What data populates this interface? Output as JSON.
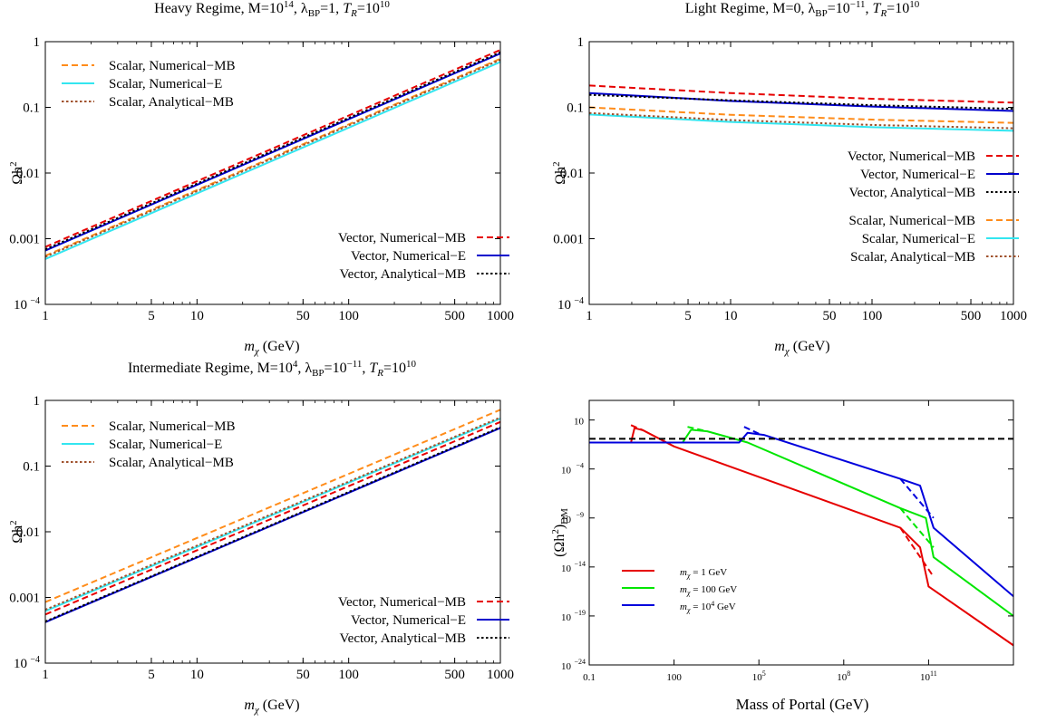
{
  "chart_data": [
    {
      "type": "line",
      "title": "Heavy Regime, M=10^14, λ_BP=1, T_R=10^10",
      "title_parts": {
        "lead": "Heavy Regime, M=10",
        "m_exp": "14",
        "mid": ", λ",
        "lam_sub": "BP",
        "lam_val": "=1, ",
        "t": "T",
        "t_sub": "R",
        "t_val": "=10",
        "t_exp": "10"
      },
      "xlabel": "m_χ (GeV)",
      "ylabel": "Ωh²",
      "xscale": "log",
      "yscale": "log",
      "xlim": [
        1,
        1000
      ],
      "ylim": [
        0.0001,
        1
      ],
      "xticks": [
        {
          "v": 1,
          "label": "1"
        },
        {
          "v": 5,
          "label": "5"
        },
        {
          "v": 10,
          "label": "10"
        },
        {
          "v": 50,
          "label": "50"
        },
        {
          "v": 100,
          "label": "100"
        },
        {
          "v": 500,
          "label": "500"
        },
        {
          "v": 1000,
          "label": "1000"
        }
      ],
      "yticks": [
        {
          "v": 0.0001,
          "label": "10",
          "exp": "−4"
        },
        {
          "v": 0.001,
          "label": "0.001"
        },
        {
          "v": 0.01,
          "label": "0.01"
        },
        {
          "v": 0.1,
          "label": "0.1"
        },
        {
          "v": 1,
          "label": "1"
        }
      ],
      "series": [
        {
          "name": "Scalar, Numerical−MB",
          "color": "#ff8c1a",
          "dash": "dashed",
          "x": [
            1,
            1000
          ],
          "y": [
            0.00055,
            0.55
          ]
        },
        {
          "name": "Scalar, Numerical−E",
          "color": "#33e6f0",
          "dash": "solid",
          "x": [
            1,
            1000
          ],
          "y": [
            0.00049,
            0.49
          ]
        },
        {
          "name": "Scalar, Analytical−MB",
          "color": "#a0522d",
          "dash": "dotted",
          "x": [
            1,
            1000
          ],
          "y": [
            0.00053,
            0.53
          ]
        },
        {
          "name": "Vector, Numerical−MB",
          "color": "#e60000",
          "dash": "dashed",
          "x": [
            1,
            1000
          ],
          "y": [
            0.00075,
            0.75
          ]
        },
        {
          "name": "Vector, Numerical−E",
          "color": "#0000cc",
          "dash": "solid",
          "x": [
            1,
            1000
          ],
          "y": [
            0.00066,
            0.66
          ]
        },
        {
          "name": "Vector, Analytical−MB",
          "color": "#000000",
          "dash": "dotted",
          "x": [
            1,
            1000
          ],
          "y": [
            0.00069,
            0.69
          ]
        }
      ],
      "legends": [
        {
          "placement": "top-left",
          "series": [
            0,
            1,
            2
          ]
        },
        {
          "placement": "bottom-right",
          "series": [
            3,
            4,
            5
          ]
        }
      ]
    },
    {
      "type": "line",
      "title": "Light Regime, M=0, λ_BP=10^−11, T_R=10^10",
      "title_parts": {
        "lead": "Light Regime, M=0",
        "m_exp": "",
        "mid": ", λ",
        "lam_sub": "BP",
        "lam_val": "=10",
        "lam_exp": "−11",
        "lam_sep": ", ",
        "t": "T",
        "t_sub": "R",
        "t_val": "=10",
        "t_exp": "10"
      },
      "xlabel": "m_χ (GeV)",
      "ylabel": "Ωh²",
      "xscale": "log",
      "yscale": "log",
      "xlim": [
        1,
        1000
      ],
      "ylim": [
        0.0001,
        1
      ],
      "xticks": [
        {
          "v": 1,
          "label": "1"
        },
        {
          "v": 5,
          "label": "5"
        },
        {
          "v": 10,
          "label": "10"
        },
        {
          "v": 50,
          "label": "50"
        },
        {
          "v": 100,
          "label": "100"
        },
        {
          "v": 500,
          "label": "500"
        },
        {
          "v": 1000,
          "label": "1000"
        }
      ],
      "yticks": [
        {
          "v": 0.0001,
          "label": "10",
          "exp": "−4"
        },
        {
          "v": 0.001,
          "label": "0.001"
        },
        {
          "v": 0.01,
          "label": "0.01"
        },
        {
          "v": 0.1,
          "label": "0.1"
        },
        {
          "v": 1,
          "label": "1"
        }
      ],
      "series": [
        {
          "name": "Vector, Numerical−MB",
          "color": "#e60000",
          "dash": "dashed",
          "x": [
            1,
            10,
            100,
            1000
          ],
          "y": [
            0.215,
            0.165,
            0.135,
            0.118
          ]
        },
        {
          "name": "Vector, Numerical−E",
          "color": "#0000cc",
          "dash": "solid",
          "x": [
            1,
            10,
            100,
            1000
          ],
          "y": [
            0.165,
            0.125,
            0.103,
            0.088
          ]
        },
        {
          "name": "Vector, Analytical−MB",
          "color": "#000000",
          "dash": "dotted",
          "x": [
            1,
            10,
            100,
            1000
          ],
          "y": [
            0.155,
            0.128,
            0.108,
            0.095
          ]
        },
        {
          "name": "Scalar, Numerical−MB",
          "color": "#ff8c1a",
          "dash": "dashed",
          "x": [
            1,
            10,
            100,
            1000
          ],
          "y": [
            0.1,
            0.077,
            0.065,
            0.058
          ]
        },
        {
          "name": "Scalar, Numerical−E",
          "color": "#33e6f0",
          "dash": "solid",
          "x": [
            1,
            10,
            100,
            1000
          ],
          "y": [
            0.078,
            0.06,
            0.05,
            0.044
          ]
        },
        {
          "name": "Scalar, Analytical−MB",
          "color": "#a0522d",
          "dash": "dotted",
          "x": [
            1,
            10,
            100,
            1000
          ],
          "y": [
            0.082,
            0.064,
            0.054,
            0.048
          ]
        }
      ],
      "legends": [
        {
          "placement": "right",
          "series": [
            0,
            1,
            2
          ]
        },
        {
          "placement": "bottom-right",
          "series": [
            3,
            4,
            5
          ]
        }
      ]
    },
    {
      "type": "line",
      "title": "Intermediate Regime, M=10^4, λ_BP=10^−11, T_R=10^10",
      "title_parts": {
        "lead": "Intermediate Regime, M=10",
        "m_exp": "4",
        "mid": ", λ",
        "lam_sub": "BP",
        "lam_val": "=10",
        "lam_exp": "−11",
        "lam_sep": ", ",
        "t": "T",
        "t_sub": "R",
        "t_val": "=10",
        "t_exp": "10"
      },
      "xlabel": "m_χ (GeV)",
      "ylabel": "Ωh²",
      "xscale": "log",
      "yscale": "log",
      "xlim": [
        1,
        1000
      ],
      "ylim": [
        0.0001,
        1
      ],
      "xticks": [
        {
          "v": 1,
          "label": "1"
        },
        {
          "v": 5,
          "label": "5"
        },
        {
          "v": 10,
          "label": "10"
        },
        {
          "v": 50,
          "label": "50"
        },
        {
          "v": 100,
          "label": "100"
        },
        {
          "v": 500,
          "label": "500"
        },
        {
          "v": 1000,
          "label": "1000"
        }
      ],
      "yticks": [
        {
          "v": 0.0001,
          "label": "10",
          "exp": "−4"
        },
        {
          "v": 0.001,
          "label": "0.001"
        },
        {
          "v": 0.01,
          "label": "0.01"
        },
        {
          "v": 0.1,
          "label": "0.1"
        },
        {
          "v": 1,
          "label": "1"
        }
      ],
      "series": [
        {
          "name": "Scalar, Numerical−MB",
          "color": "#ff8c1a",
          "dash": "dashed",
          "x": [
            1,
            1000
          ],
          "y": [
            0.00085,
            0.72
          ]
        },
        {
          "name": "Scalar, Numerical−E",
          "color": "#33e6f0",
          "dash": "solid",
          "x": [
            1,
            1000
          ],
          "y": [
            0.00062,
            0.53
          ]
        },
        {
          "name": "Scalar, Analytical−MB",
          "color": "#a0522d",
          "dash": "dotted",
          "x": [
            1,
            1000
          ],
          "y": [
            0.00065,
            0.55
          ]
        },
        {
          "name": "Vector, Numerical−MB",
          "color": "#e60000",
          "dash": "dashed",
          "x": [
            1,
            1000
          ],
          "y": [
            0.00055,
            0.47
          ]
        },
        {
          "name": "Vector, Numerical−E",
          "color": "#0000cc",
          "dash": "solid",
          "x": [
            1,
            1000
          ],
          "y": [
            0.00042,
            0.38
          ]
        },
        {
          "name": "Vector, Analytical−MB",
          "color": "#000000",
          "dash": "dotted",
          "x": [
            1,
            1000
          ],
          "y": [
            0.00043,
            0.39
          ]
        }
      ],
      "legends": [
        {
          "placement": "top-left",
          "series": [
            0,
            1,
            2
          ]
        },
        {
          "placement": "bottom-right",
          "series": [
            3,
            4,
            5
          ]
        }
      ]
    },
    {
      "type": "line",
      "title": "",
      "xlabel": "Mass of Portal (GeV)",
      "ylabel": "(Ωh²)_DM",
      "xscale": "log",
      "yscale": "log",
      "xlim": [
        0.1,
        100000000000000.0
      ],
      "ylim": [
        1e-24,
        1000.0
      ],
      "xticks": [
        {
          "v": 0.1,
          "label": "0.1"
        },
        {
          "v": 100,
          "label": "100"
        },
        {
          "v": 100000.0,
          "label": "10",
          "exp": "5"
        },
        {
          "v": 100000000.0,
          "label": "10",
          "exp": "8"
        },
        {
          "v": 100000000000.0,
          "label": "10",
          "exp": "11"
        }
      ],
      "yticks": [
        {
          "v": 1e-24,
          "label": "10",
          "exp": "−24"
        },
        {
          "v": 1e-19,
          "label": "10",
          "exp": "−19"
        },
        {
          "v": 1e-14,
          "label": "10",
          "exp": "−14"
        },
        {
          "v": 1e-09,
          "label": "10",
          "exp": "−9"
        },
        {
          "v": 0.0001,
          "label": "10",
          "exp": "−4"
        },
        {
          "v": 10,
          "label": "10"
        }
      ],
      "series": [
        {
          "name": "m_χ = 1 GeV",
          "color": "#e60000",
          "dash": "solid",
          "x": [
            0.1,
            3,
            4,
            8,
            100,
            10000000000.0,
            50000000000.0,
            100000000000.0,
            100000000000000.0
          ],
          "y": [
            0.05,
            0.05,
            1.5,
            0.9,
            0.02,
            1e-10,
            1e-12,
            1e-16,
            1e-22
          ]
        },
        {
          "name": "m_χ = 100 GeV",
          "color": "#00e600",
          "dash": "solid",
          "x": [
            0.1,
            200,
            400,
            1500,
            40000,
            10000000000.0,
            80000000000.0,
            150000000000.0,
            100000000000000.0
          ],
          "y": [
            0.05,
            0.05,
            1,
            0.7,
            0.05,
            1e-08,
            1e-09,
            1e-13,
            1e-19
          ]
        },
        {
          "name": "m_χ = 10^4 GeV",
          "color": "#0000dd",
          "dash": "solid",
          "x": [
            0.1,
            20000,
            40000,
            150000.0,
            10000000000.0,
            50000000000.0,
            150000000000.0,
            100000000000000.0
          ],
          "y": [
            0.05,
            0.05,
            0.5,
            0.3,
            1e-05,
            2e-06,
            1e-10,
            1e-17
          ]
        },
        {
          "name": "",
          "color": "#e60000",
          "dash": "dashed",
          "x": [
            3,
            8
          ],
          "y": [
            3,
            0.9
          ]
        },
        {
          "name": "",
          "color": "#e60000",
          "dash": "dashed",
          "x": [
            10000000000.0,
            150000000000.0
          ],
          "y": [
            1e-10,
            1e-15
          ]
        },
        {
          "name": "",
          "color": "#00e600",
          "dash": "dashed",
          "x": [
            300,
            1200
          ],
          "y": [
            2,
            0.8
          ]
        },
        {
          "name": "",
          "color": "#00e600",
          "dash": "dashed",
          "x": [
            10000000000.0,
            150000000000.0
          ],
          "y": [
            1e-08,
            1e-12
          ]
        },
        {
          "name": "",
          "color": "#0000dd",
          "dash": "dashed",
          "x": [
            30000,
            100000.0
          ],
          "y": [
            2,
            0.4
          ]
        },
        {
          "name": "",
          "color": "#0000dd",
          "dash": "dashed",
          "x": [
            10000000000.0,
            150000000000.0
          ],
          "y": [
            1e-05,
            1e-09
          ]
        },
        {
          "name": "",
          "color": "#000000",
          "dash": "dashed",
          "x": [
            0.1,
            100000000000000.0
          ],
          "y": [
            0.12,
            0.12
          ]
        }
      ],
      "legends": [
        {
          "placement": "lower-left",
          "series": [
            0,
            1,
            2
          ]
        }
      ]
    }
  ]
}
